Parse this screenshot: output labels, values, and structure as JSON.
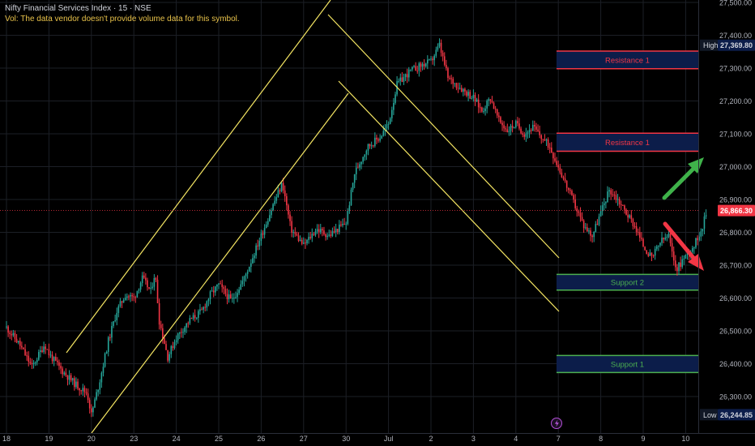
{
  "header": {
    "title": "Nifty Financial Services Index · 15 · NSE",
    "volume_note": "Vol: The data vendor doesn't provide volume data for this symbol."
  },
  "chart_data": {
    "type": "candlestick",
    "timeframe": "15",
    "symbol": "Nifty Financial Services Index",
    "exchange": "NSE",
    "ylim": [
      26220,
      27500
    ],
    "y_ticks": [
      26300,
      26400,
      26500,
      26600,
      26700,
      26800,
      26900,
      27000,
      27100,
      27200,
      27300,
      27400,
      27500
    ],
    "y_tick_labels": [
      "26,300.00",
      "26,400.00",
      "26,500.00",
      "26,600.00",
      "26,700.00",
      "26,800.00",
      "26,900.00",
      "27,000.00",
      "27,100.00",
      "27,200.00",
      "27,300.00",
      "27,400.00",
      "27,500.00"
    ],
    "x_ticks": [
      "18",
      "19",
      "20",
      "23",
      "24",
      "25",
      "26",
      "27",
      "30",
      "Jul",
      "2",
      "3",
      "4",
      "7",
      "8",
      "9",
      "10"
    ],
    "grid": true,
    "price_labels": {
      "high": {
        "label": "High",
        "value": 27369.8,
        "text": "27,369.80"
      },
      "last": {
        "value": 26866.3,
        "text": "26,866.30"
      },
      "low": {
        "label": "Low",
        "value": 26244.85,
        "text": "26,244.85"
      }
    },
    "zones": [
      {
        "label": "Resistance 1",
        "kind": "resistance",
        "top": 27352,
        "bottom": 27298
      },
      {
        "label": "Resistance 1",
        "kind": "resistance",
        "top": 27102,
        "bottom": 27047
      },
      {
        "label": "Support 2",
        "kind": "support",
        "top": 26672,
        "bottom": 26624
      },
      {
        "label": "Support 1",
        "kind": "support",
        "top": 26425,
        "bottom": 26373
      }
    ],
    "trend_arrows": [
      {
        "direction": "up",
        "color": "#3fb24a"
      },
      {
        "direction": "down",
        "color": "#f23645"
      }
    ],
    "colors": {
      "bull": "#26a69a",
      "bear": "#f23645",
      "channel": "#f5e663",
      "resistance_border": "#f23645",
      "support_border": "#4caf50",
      "zone_fill": "#0c1d4a",
      "last_price": "#f23645",
      "grid": "#1c1f26"
    },
    "price_path": [
      [
        18.0,
        26510
      ],
      [
        18.3,
        26460
      ],
      [
        18.6,
        26390
      ],
      [
        18.9,
        26460
      ],
      [
        19.0,
        26430
      ],
      [
        19.3,
        26380
      ],
      [
        19.6,
        26340
      ],
      [
        19.9,
        26310
      ],
      [
        20.0,
        26244.85
      ],
      [
        20.2,
        26350
      ],
      [
        20.4,
        26470
      ],
      [
        20.6,
        26560
      ],
      [
        20.8,
        26610
      ],
      [
        21.0,
        26600
      ],
      [
        21.2,
        26660
      ],
      [
        21.4,
        26620
      ],
      [
        21.5,
        26680
      ],
      [
        21.6,
        26530
      ],
      [
        21.8,
        26420
      ],
      [
        22.0,
        26480
      ],
      [
        22.3,
        26530
      ],
      [
        22.6,
        26560
      ],
      [
        22.8,
        26610
      ],
      [
        23.0,
        26640
      ],
      [
        23.3,
        26590
      ],
      [
        23.6,
        26660
      ],
      [
        24.0,
        26790
      ],
      [
        24.3,
        26890
      ],
      [
        24.5,
        26950
      ],
      [
        24.7,
        26810
      ],
      [
        25.0,
        26760
      ],
      [
        25.3,
        26810
      ],
      [
        25.6,
        26790
      ],
      [
        26.0,
        26830
      ],
      [
        26.2,
        26980
      ],
      [
        26.5,
        27060
      ],
      [
        26.8,
        27090
      ],
      [
        27.0,
        27130
      ],
      [
        27.2,
        27250
      ],
      [
        27.5,
        27290
      ],
      [
        27.8,
        27310
      ],
      [
        28.0,
        27320
      ],
      [
        28.2,
        27369.8
      ],
      [
        28.4,
        27270
      ],
      [
        28.7,
        27240
      ],
      [
        29.0,
        27210
      ],
      [
        29.2,
        27170
      ],
      [
        29.4,
        27210
      ],
      [
        29.6,
        27140
      ],
      [
        29.8,
        27110
      ],
      [
        30.0,
        27130
      ],
      [
        30.2,
        27100
      ],
      [
        30.4,
        27120
      ],
      [
        30.6,
        27090
      ],
      [
        30.8,
        27060
      ],
      [
        31.0,
        27000
      ],
      [
        31.2,
        26940
      ],
      [
        31.4,
        26880
      ],
      [
        31.6,
        26820
      ],
      [
        31.8,
        26790
      ],
      [
        32.0,
        26860
      ],
      [
        32.2,
        26930
      ],
      [
        32.4,
        26900
      ],
      [
        32.6,
        26860
      ],
      [
        32.8,
        26820
      ],
      [
        33.0,
        26760
      ],
      [
        33.2,
        26720
      ],
      [
        33.4,
        26770
      ],
      [
        33.6,
        26790
      ],
      [
        33.7,
        26720
      ],
      [
        33.8,
        26690
      ],
      [
        34.0,
        26730
      ],
      [
        34.2,
        26760
      ],
      [
        34.4,
        26820
      ],
      [
        34.5,
        26866.3
      ]
    ]
  }
}
